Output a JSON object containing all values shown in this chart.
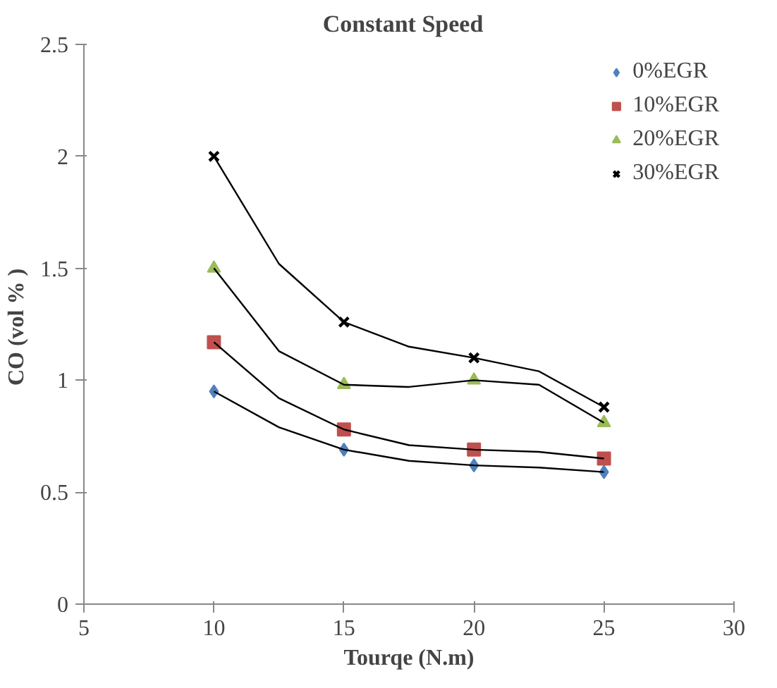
{
  "chart_data": {
    "type": "scatter",
    "title": "Constant   Speed",
    "xlabel": "Tourqe (N.m)",
    "ylabel": "CO  (vol % )",
    "x": [
      10,
      15,
      20,
      25
    ],
    "series": [
      {
        "name": "0%EGR",
        "color": "#4f81bd",
        "marker": "diamond",
        "values": [
          0.95,
          0.69,
          0.62,
          0.59
        ]
      },
      {
        "name": "10%EGR",
        "color": "#c0504d",
        "marker": "square",
        "values": [
          1.17,
          0.78,
          0.69,
          0.65
        ]
      },
      {
        "name": "20%EGR",
        "color": "#9bbb59",
        "marker": "triangle",
        "values": [
          1.5,
          0.98,
          1.0,
          0.81
        ]
      },
      {
        "name": "30%EGR",
        "color": "#000000",
        "marker": "cross",
        "values": [
          2.0,
          1.26,
          1.1,
          0.88
        ]
      },
      {
        "type": "line",
        "color": "#000000",
        "marker": "none",
        "x": [
          10,
          12.5,
          15,
          17.5,
          20,
          22.5,
          25
        ],
        "values": [
          0.95,
          0.79,
          0.69,
          0.64,
          0.62,
          0.61,
          0.59
        ]
      },
      {
        "type": "line",
        "color": "#000000",
        "marker": "none",
        "x": [
          10,
          12.5,
          15,
          17.5,
          20,
          22.5,
          25
        ],
        "values": [
          1.17,
          0.92,
          0.78,
          0.71,
          0.69,
          0.68,
          0.65
        ]
      },
      {
        "type": "line",
        "color": "#000000",
        "marker": "none",
        "x": [
          10,
          12.5,
          15,
          17.5,
          20,
          22.5,
          25
        ],
        "values": [
          1.5,
          1.13,
          0.98,
          0.97,
          1.0,
          0.98,
          0.81
        ]
      },
      {
        "type": "line",
        "color": "#000000",
        "marker": "none",
        "x": [
          10,
          12.5,
          15,
          17.5,
          20,
          22.5,
          25
        ],
        "values": [
          2.0,
          1.52,
          1.26,
          1.15,
          1.1,
          1.04,
          0.88
        ]
      }
    ],
    "xlim": [
      5,
      30
    ],
    "xticks": [
      5,
      10,
      15,
      20,
      25,
      30
    ],
    "ylim": [
      0,
      2.5
    ],
    "yticks": [
      0,
      0.5,
      1,
      1.5,
      2,
      2.5
    ],
    "grid": false,
    "legend": "top right"
  }
}
